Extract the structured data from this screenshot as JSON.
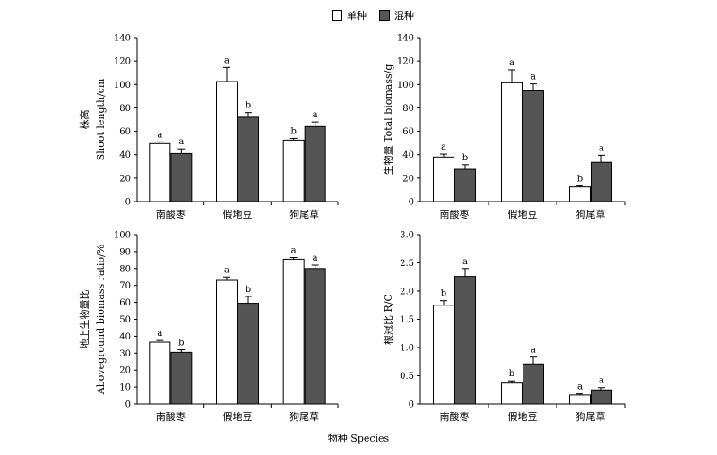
{
  "legend": {
    "items": [
      {
        "label": "单种",
        "color": "#ffffff"
      },
      {
        "label": "混种",
        "color": "#555555"
      }
    ]
  },
  "x_axis_title": "物种 Species",
  "chart_data": [
    {
      "type": "bar",
      "categories": [
        "南酸枣",
        "假地豆",
        "狗尾草"
      ],
      "ylabel": [
        "株高",
        "Shoot length/cm"
      ],
      "ylim": [
        0,
        140
      ],
      "yticks": [
        0,
        20,
        40,
        60,
        80,
        100,
        120,
        140
      ],
      "series": [
        {
          "name": "单种",
          "values": [
            49.5,
            102.5,
            52.5
          ],
          "errors": [
            1.5,
            12,
            1.5
          ],
          "letters": [
            "a",
            "a",
            "b"
          ]
        },
        {
          "name": "混种",
          "values": [
            41,
            72,
            64
          ],
          "errors": [
            4,
            4,
            4
          ],
          "letters": [
            "a",
            "b",
            "a"
          ]
        }
      ]
    },
    {
      "type": "bar",
      "categories": [
        "南酸枣",
        "假地豆",
        "狗尾草"
      ],
      "ylabel": [
        "生物量 Total biomass/g"
      ],
      "ylim": [
        0,
        140
      ],
      "yticks": [
        0,
        20,
        40,
        60,
        80,
        100,
        120,
        140
      ],
      "series": [
        {
          "name": "单种",
          "values": [
            38,
            101.5,
            12.5
          ],
          "errors": [
            2.5,
            11,
            1
          ],
          "letters": [
            "a",
            "a",
            "b"
          ]
        },
        {
          "name": "混种",
          "values": [
            27.5,
            94.5,
            33.5
          ],
          "errors": [
            4,
            6,
            6
          ],
          "letters": [
            "b",
            "a",
            "a"
          ]
        }
      ]
    },
    {
      "type": "bar",
      "categories": [
        "南酸枣",
        "假地豆",
        "狗尾草"
      ],
      "ylabel": [
        "地上生物量比",
        "Aboveground biomass ratio/%"
      ],
      "ylim": [
        0,
        100
      ],
      "yticks": [
        0,
        10,
        20,
        30,
        40,
        50,
        60,
        70,
        80,
        90,
        100
      ],
      "series": [
        {
          "name": "单种",
          "values": [
            36.5,
            73,
            85.5
          ],
          "errors": [
            1,
            2,
            1
          ],
          "letters": [
            "a",
            "a",
            "a"
          ]
        },
        {
          "name": "混种",
          "values": [
            30.5,
            59.5,
            80
          ],
          "errors": [
            1.5,
            4,
            2
          ],
          "letters": [
            "b",
            "b",
            "a"
          ]
        }
      ]
    },
    {
      "type": "bar",
      "categories": [
        "南酸枣",
        "假地豆",
        "狗尾草"
      ],
      "ylabel": [
        "根冠比 R/C"
      ],
      "ylim": [
        0,
        3.0
      ],
      "yticks": [
        "0",
        "0.5",
        "1.0",
        "1.5",
        "2.0",
        "2.5",
        "3.0"
      ],
      "series": [
        {
          "name": "单种",
          "values": [
            1.75,
            0.37,
            0.16
          ],
          "errors": [
            0.08,
            0.04,
            0.02
          ],
          "letters": [
            "b",
            "b",
            "a"
          ]
        },
        {
          "name": "混种",
          "values": [
            2.26,
            0.71,
            0.25
          ],
          "errors": [
            0.14,
            0.12,
            0.04
          ],
          "letters": [
            "a",
            "a",
            "a"
          ]
        }
      ]
    }
  ]
}
